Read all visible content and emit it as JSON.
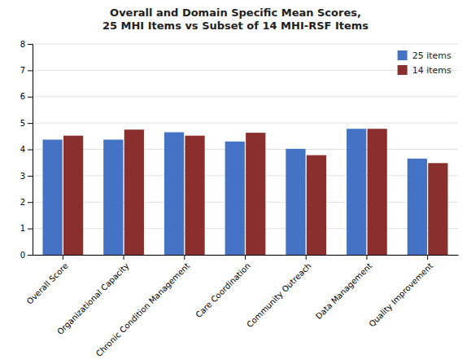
{
  "chart_data": {
    "type": "bar",
    "title": "Overall and Domain Specific Mean Scores,\n25 MHI Items vs Subset of 14 MHI-RSF Items",
    "categories": [
      "Overall Score",
      "Organizational Capacity",
      "Chronic Condition Management",
      "Care Coordination",
      "Community Outreach",
      "Data Management",
      "Quality Improvement"
    ],
    "series": [
      {
        "name": "25 items",
        "color": "#4472C4",
        "values": [
          4.37,
          4.37,
          4.65,
          4.3,
          4.02,
          4.78,
          3.65
        ]
      },
      {
        "name": "14 items",
        "color": "#8B2E2E",
        "values": [
          4.52,
          4.75,
          4.52,
          4.63,
          3.78,
          4.78,
          3.48
        ]
      }
    ],
    "ylim": [
      0,
      8
    ],
    "yticks": [
      0,
      1,
      2,
      3,
      4,
      5,
      6,
      7,
      8
    ],
    "grid": true,
    "legend": "upper right"
  }
}
